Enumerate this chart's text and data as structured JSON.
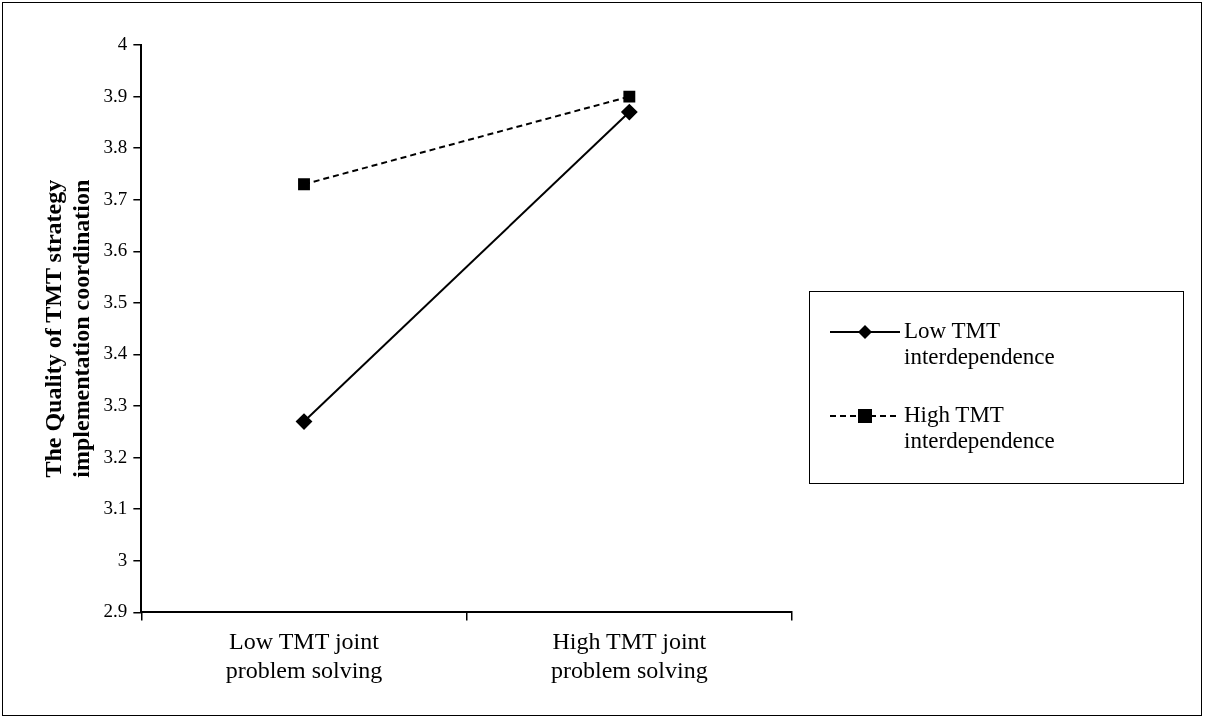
{
  "chart_data": {
    "type": "line",
    "ylabel": "The Quality of TMT strategy implementation coordination",
    "categories": [
      "Low TMT joint problem solving",
      "High TMT joint problem solving"
    ],
    "series": [
      {
        "name": "Low TMT interdependence",
        "color": "#000000",
        "marker": "diamond",
        "line_style": "solid",
        "values": [
          3.27,
          3.87
        ]
      },
      {
        "name": "High TMT interdependence",
        "color": "#000000",
        "marker": "square",
        "line_style": "dashed",
        "values": [
          3.73,
          3.9
        ]
      }
    ],
    "ylim": [
      2.9,
      4
    ],
    "yticks": [
      2.9,
      3,
      3.1,
      3.2,
      3.3,
      3.4,
      3.5,
      3.6,
      3.7,
      3.8,
      3.9,
      4
    ],
    "grid": false,
    "legend": "right"
  }
}
